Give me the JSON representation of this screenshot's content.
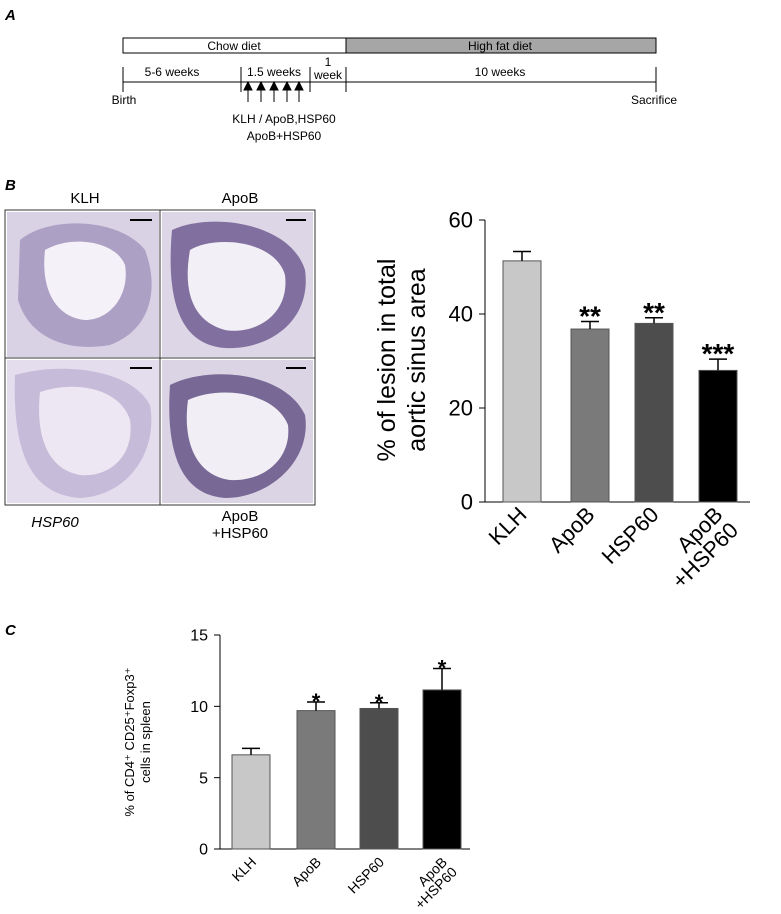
{
  "panel_a": {
    "label": "A",
    "chow": "Chow diet",
    "hfd": "High fat diet",
    "period_1": "5-6 weeks",
    "period_2": "1.5 weeks",
    "period_3": [
      "1",
      "week"
    ],
    "period_4": "10 weeks",
    "start": "Birth",
    "end": "Sacrifice",
    "immunization": [
      "KLH / ApoB,HSP60",
      "ApoB+HSP60"
    ]
  },
  "panel_b": {
    "label": "B",
    "images": [
      "KLH",
      "ApoB",
      "HSP60",
      [
        "ApoB",
        "+HSP60"
      ]
    ]
  },
  "panel_c": {
    "label": "C"
  },
  "chart_data": [
    {
      "type": "bar",
      "ylabel": [
        "% of lesion in total",
        "aortic sinus area"
      ],
      "categories": [
        "KLH",
        "ApoB",
        "HSP60",
        [
          "ApoB",
          "+HSP60"
        ]
      ],
      "values": [
        51.3,
        36.8,
        38,
        28
      ],
      "errors": [
        2,
        1.6,
        1.2,
        2.4
      ],
      "colors": [
        "#c8c8c8",
        "#7a7a7a",
        "#4d4d4d",
        "#000000"
      ],
      "annotations": [
        null,
        "**",
        "**",
        "***"
      ],
      "ylim": [
        0,
        60
      ],
      "yticks": [
        0,
        20,
        40,
        60
      ]
    },
    {
      "type": "bar",
      "ylabel": [
        "% of CD4⁺ CD25⁺Foxp3⁺",
        "cells in spleen"
      ],
      "categories": [
        "KLH",
        "ApoB",
        "HSP60",
        [
          "ApoB",
          "+HSP60"
        ]
      ],
      "values": [
        6.6,
        9.7,
        9.85,
        11.15
      ],
      "errors": [
        0.45,
        0.6,
        0.4,
        1.5
      ],
      "colors": [
        "#c8c8c8",
        "#7a7a7a",
        "#4d4d4d",
        "#000000"
      ],
      "annotations": [
        null,
        "*",
        "*",
        "*"
      ],
      "ylim": [
        0,
        15
      ],
      "yticks": [
        0,
        5,
        10,
        15
      ]
    }
  ]
}
